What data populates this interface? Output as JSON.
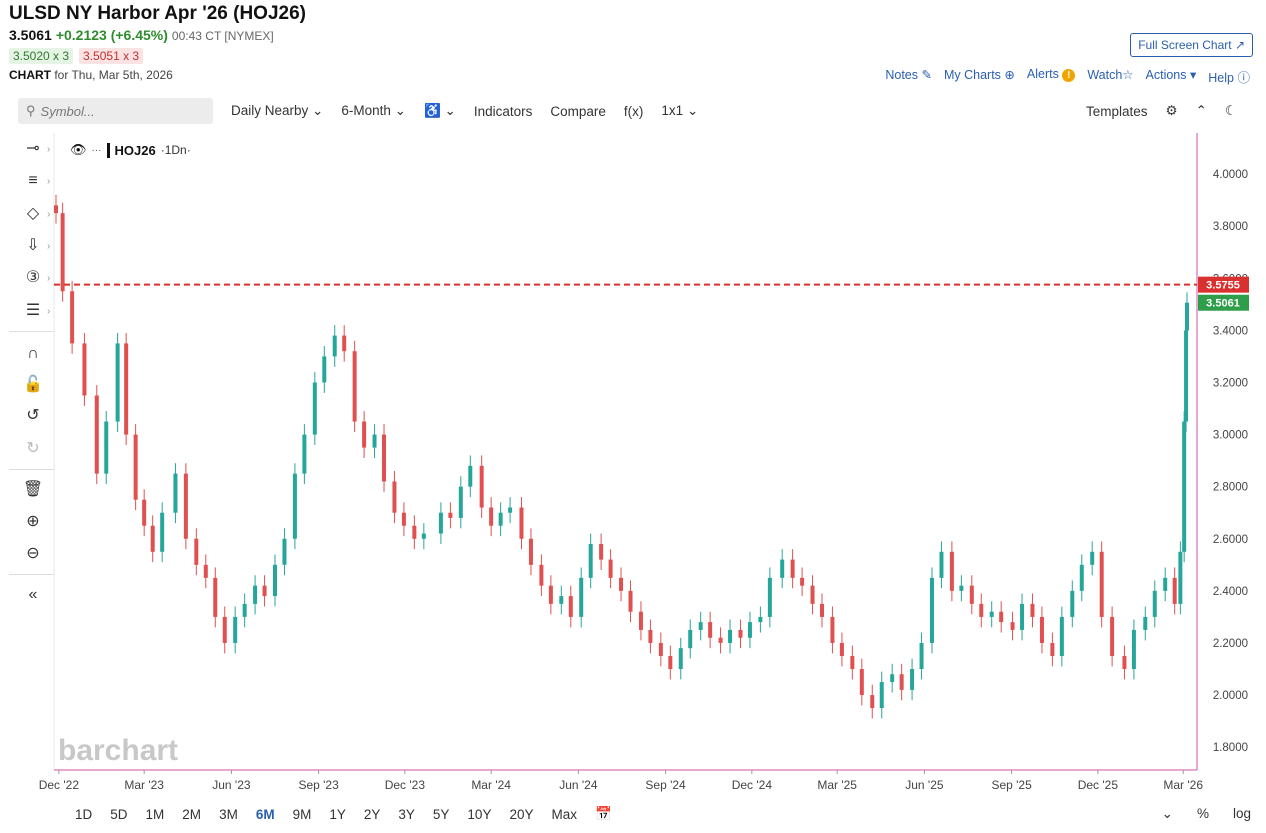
{
  "header": {
    "title": "ULSD NY Harbor Apr '26 (HOJ26)",
    "last": "3.5061",
    "change": "+0.2123 (+6.45%)",
    "time": "00:43 CT [NYMEX]",
    "bid": "3.5020 x 3",
    "ask": "3.5051 x 3",
    "chart_label": "CHART",
    "chart_for": "for Thu, Mar 5th, 2026",
    "fullscreen": "Full Screen Chart",
    "links": [
      "Notes",
      "My Charts",
      "Alerts",
      "Watch",
      "Actions",
      "Help"
    ]
  },
  "toolbar": {
    "symbol_placeholder": "Symbol...",
    "period": "Daily Nearby",
    "range": "6-Month",
    "chart_type": "0Φ",
    "indicators": "Indicators",
    "compare": "Compare",
    "fx": "f(x)",
    "layout": "1x1",
    "templates": "Templates"
  },
  "legend": {
    "symbol": "HOJ26",
    "timeframe": "·1Dn·"
  },
  "watermark": "barchart",
  "bottom": {
    "ranges": [
      "1D",
      "5D",
      "1M",
      "2M",
      "3M",
      "6M",
      "9M",
      "1Y",
      "2Y",
      "3Y",
      "5Y",
      "10Y",
      "20Y",
      "Max"
    ],
    "active_range": "6M",
    "percent": "%",
    "log": "log"
  },
  "colors": {
    "up": "#26a69a",
    "down": "#e05050",
    "accent": "#2a5fb0",
    "last_bg": "#2e9e4a",
    "ref_bg": "#d93030"
  },
  "chart_data": {
    "type": "line",
    "title": "ULSD NY Harbor Apr '26 (HOJ26)",
    "xlabel": "",
    "ylabel": "",
    "x_ticks": [
      "Dec '22",
      "Mar '23",
      "Jun '23",
      "Sep '23",
      "Dec '23",
      "Mar '24",
      "Jun '24",
      "Sep '24",
      "Dec '24",
      "Mar '25",
      "Jun '25",
      "Sep '25",
      "Dec '25",
      "Mar '26"
    ],
    "y_ticks": [
      "4.0000",
      "3.8000",
      "3.6000",
      "3.4000",
      "3.2000",
      "3.0000",
      "2.8000",
      "2.6000",
      "2.4000",
      "2.2000",
      "2.0000",
      "1.8000"
    ],
    "ylim": [
      1.72,
      4.15
    ],
    "x": [
      "2022-11-28",
      "2022-12-05",
      "2022-12-15",
      "2022-12-28",
      "2023-01-10",
      "2023-01-20",
      "2023-02-01",
      "2023-02-10",
      "2023-02-20",
      "2023-03-01",
      "2023-03-10",
      "2023-03-20",
      "2023-04-03",
      "2023-04-14",
      "2023-04-25",
      "2023-05-05",
      "2023-05-15",
      "2023-05-25",
      "2023-06-05",
      "2023-06-15",
      "2023-06-26",
      "2023-07-06",
      "2023-07-17",
      "2023-07-27",
      "2023-08-07",
      "2023-08-17",
      "2023-08-28",
      "2023-09-07",
      "2023-09-18",
      "2023-09-28",
      "2023-10-09",
      "2023-10-19",
      "2023-10-30",
      "2023-11-09",
      "2023-11-20",
      "2023-11-30",
      "2023-12-11",
      "2023-12-21",
      "2024-01-08",
      "2024-01-18",
      "2024-01-29",
      "2024-02-08",
      "2024-02-20",
      "2024-03-01",
      "2024-03-11",
      "2024-03-21",
      "2024-04-02",
      "2024-04-12",
      "2024-04-23",
      "2024-05-03",
      "2024-05-14",
      "2024-05-24",
      "2024-06-04",
      "2024-06-14",
      "2024-06-25",
      "2024-07-05",
      "2024-07-16",
      "2024-07-26",
      "2024-08-06",
      "2024-08-16",
      "2024-08-27",
      "2024-09-06",
      "2024-09-17",
      "2024-09-27",
      "2024-10-08",
      "2024-10-18",
      "2024-10-29",
      "2024-11-08",
      "2024-11-19",
      "2024-11-29",
      "2024-12-10",
      "2024-12-20",
      "2025-01-02",
      "2025-01-13",
      "2025-01-23",
      "2025-02-03",
      "2025-02-13",
      "2025-02-24",
      "2025-03-06",
      "2025-03-17",
      "2025-03-27",
      "2025-04-07",
      "2025-04-17",
      "2025-04-28",
      "2025-05-08",
      "2025-05-19",
      "2025-05-29",
      "2025-06-09",
      "2025-06-19",
      "2025-06-30",
      "2025-07-10",
      "2025-07-21",
      "2025-07-31",
      "2025-08-11",
      "2025-08-21",
      "2025-09-02",
      "2025-09-12",
      "2025-09-23",
      "2025-10-03",
      "2025-10-14",
      "2025-10-24",
      "2025-11-04",
      "2025-11-14",
      "2025-11-25",
      "2025-12-05",
      "2025-12-16",
      "2025-12-29",
      "2026-01-08",
      "2026-01-20",
      "2026-01-30",
      "2026-02-10",
      "2026-02-20",
      "2026-02-26",
      "2026-03-02",
      "2026-03-04",
      "2026-03-05"
    ],
    "series": [
      {
        "values": [
          3.85,
          3.55,
          3.35,
          3.15,
          2.85,
          3.05,
          3.35,
          3.0,
          2.75,
          2.65,
          2.55,
          2.7,
          2.85,
          2.6,
          2.5,
          2.45,
          2.3,
          2.2,
          2.3,
          2.35,
          2.42,
          2.38,
          2.5,
          2.6,
          2.85,
          3.0,
          3.2,
          3.3,
          3.38,
          3.32,
          3.05,
          2.95,
          3.0,
          2.82,
          2.7,
          2.65,
          2.6,
          2.62,
          2.7,
          2.68,
          2.8,
          2.88,
          2.72,
          2.65,
          2.7,
          2.72,
          2.6,
          2.5,
          2.42,
          2.35,
          2.38,
          2.3,
          2.45,
          2.58,
          2.52,
          2.45,
          2.4,
          2.32,
          2.25,
          2.2,
          2.15,
          2.1,
          2.18,
          2.25,
          2.28,
          2.22,
          2.2,
          2.25,
          2.22,
          2.28,
          2.3,
          2.45,
          2.52,
          2.45,
          2.42,
          2.35,
          2.3,
          2.2,
          2.15,
          2.1,
          2.0,
          1.95,
          2.05,
          2.08,
          2.02,
          2.1,
          2.2,
          2.45,
          2.55,
          2.4,
          2.42,
          2.35,
          2.3,
          2.32,
          2.28,
          2.25,
          2.35,
          2.3,
          2.2,
          2.15,
          2.3,
          2.4,
          2.5,
          2.55,
          2.3,
          2.15,
          2.1,
          2.25,
          2.3,
          2.4,
          2.45,
          2.35,
          2.55,
          3.05,
          3.4,
          3.5061
        ]
      }
    ],
    "last_price": "3.5061",
    "reference_line": "3.5755",
    "grid": false
  }
}
